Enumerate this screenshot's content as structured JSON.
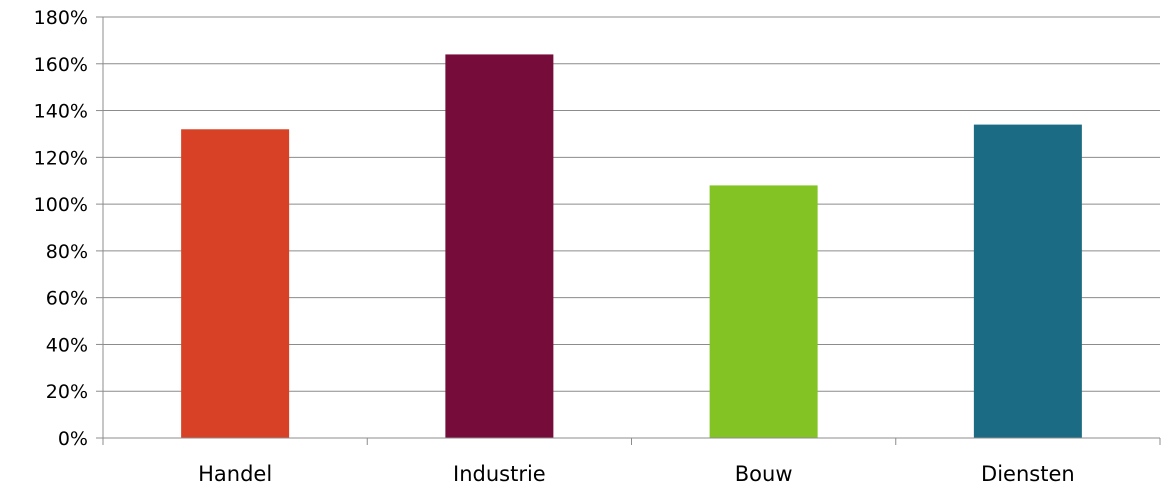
{
  "chart_data": {
    "type": "bar",
    "title": "",
    "xlabel": "",
    "ylabel": "",
    "categories": [
      "Handel",
      "Industrie",
      "Bouw",
      "Diensten"
    ],
    "values": [
      132,
      164,
      108,
      134
    ],
    "value_unit": "%",
    "ylim": [
      0,
      180
    ],
    "ytick_step": 20,
    "ytick_labels": [
      "0%",
      "20%",
      "40%",
      "60%",
      "80%",
      "100%",
      "120%",
      "140%",
      "160%",
      "180%"
    ],
    "grid": true,
    "legend": "none",
    "colors": [
      "#D84126",
      "#760C3A",
      "#83C424",
      "#1C6B84"
    ]
  }
}
